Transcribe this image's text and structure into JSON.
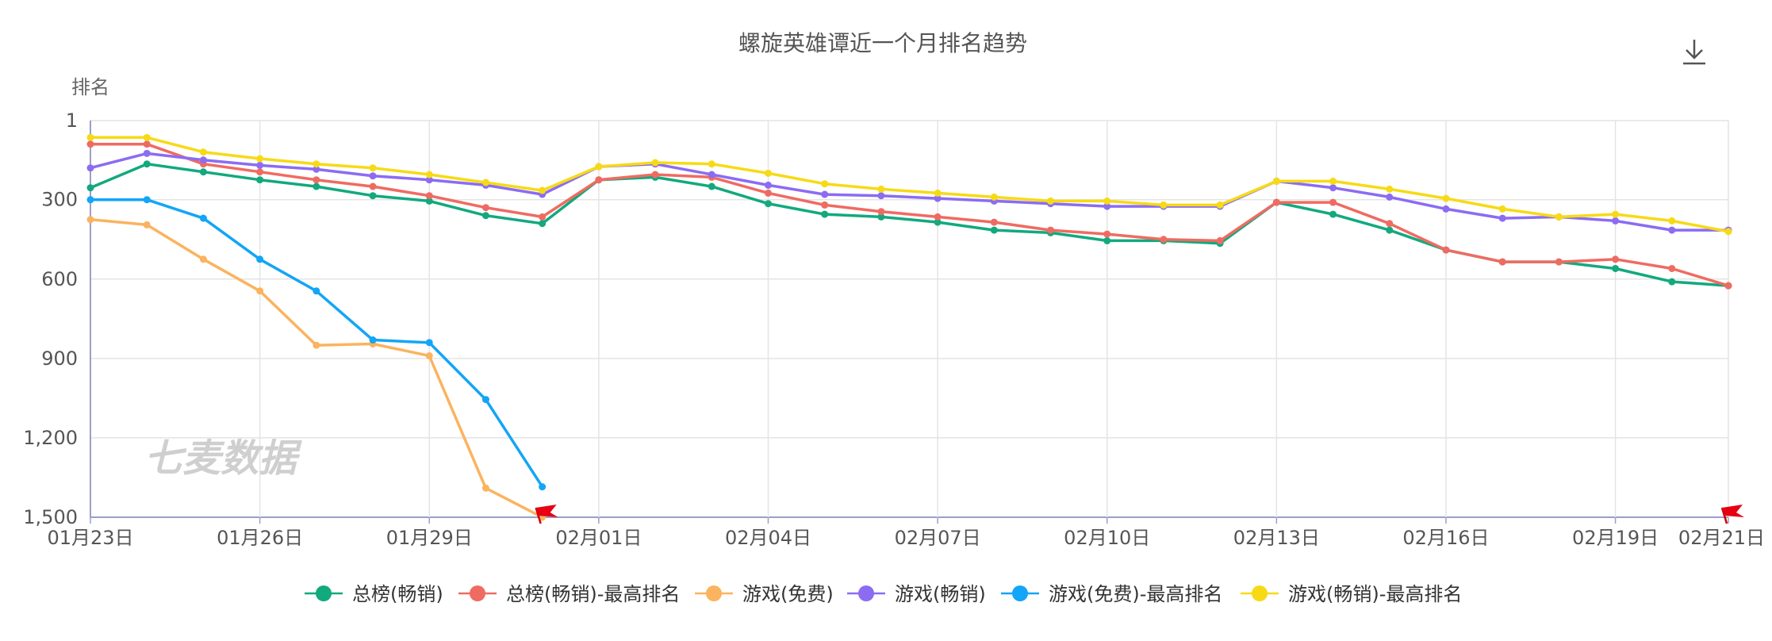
{
  "chart_data": {
    "type": "line",
    "title": "螺旋英雄谭近一个月排名趋势",
    "ylabel": "排名",
    "xlabel": "",
    "y_inverted": true,
    "ylim": [
      1,
      1500
    ],
    "y_ticks": [
      {
        "value": 1,
        "label": "1"
      },
      {
        "value": 300,
        "label": "300"
      },
      {
        "value": 600,
        "label": "600"
      },
      {
        "value": 900,
        "label": "900"
      },
      {
        "value": 1200,
        "label": "1,200"
      },
      {
        "value": 1500,
        "label": "1,500"
      }
    ],
    "x": [
      "01月23日",
      "01月24日",
      "01月25日",
      "01月26日",
      "01月27日",
      "01月28日",
      "01月29日",
      "01月30日",
      "01月31日",
      "02月01日",
      "02月02日",
      "02月03日",
      "02月04日",
      "02月05日",
      "02月06日",
      "02月07日",
      "02月08日",
      "02月09日",
      "02月10日",
      "02月11日",
      "02月12日",
      "02月13日",
      "02月14日",
      "02月15日",
      "02月16日",
      "02月17日",
      "02月18日",
      "02月19日",
      "02月20日",
      "02月21日"
    ],
    "x_ticks": [
      "01月23日",
      "01月26日",
      "01月29日",
      "02月01日",
      "02月04日",
      "02月07日",
      "02月10日",
      "02月13日",
      "02月16日",
      "02月19日",
      "02月21日"
    ],
    "grid": true,
    "legend_position": "bottom",
    "series": [
      {
        "name": "总榜(畅销)",
        "color": "#12a97e",
        "values": [
          255,
          165,
          195,
          225,
          250,
          285,
          305,
          360,
          390,
          225,
          215,
          250,
          315,
          355,
          365,
          385,
          415,
          425,
          455,
          455,
          465,
          310,
          355,
          415,
          490,
          535,
          535,
          560,
          610,
          625
        ]
      },
      {
        "name": "总榜(畅销)-最高排名",
        "color": "#ef6b62",
        "values": [
          90,
          90,
          165,
          195,
          225,
          250,
          285,
          330,
          365,
          225,
          205,
          215,
          275,
          320,
          345,
          365,
          385,
          415,
          430,
          450,
          455,
          310,
          310,
          390,
          490,
          535,
          535,
          525,
          560,
          625
        ]
      },
      {
        "name": "游戏(免费)",
        "color": "#fbb35f",
        "values": [
          375,
          395,
          525,
          645,
          850,
          845,
          890,
          1390,
          1500,
          null,
          null,
          null,
          null,
          null,
          null,
          null,
          null,
          null,
          null,
          null,
          null,
          null,
          null,
          null,
          null,
          null,
          null,
          null,
          null,
          null
        ]
      },
      {
        "name": "游戏(畅销)",
        "color": "#8b6cf2",
        "values": [
          180,
          125,
          150,
          170,
          185,
          210,
          225,
          245,
          280,
          175,
          165,
          205,
          245,
          280,
          285,
          295,
          305,
          315,
          325,
          325,
          325,
          230,
          255,
          290,
          335,
          370,
          365,
          380,
          415,
          415
        ]
      },
      {
        "name": "游戏(免费)-最高排名",
        "color": "#13a5f7",
        "values": [
          300,
          300,
          370,
          525,
          645,
          830,
          840,
          1055,
          1385,
          null,
          null,
          null,
          null,
          null,
          null,
          null,
          null,
          null,
          null,
          null,
          null,
          null,
          null,
          null,
          null,
          null,
          null,
          null,
          null,
          null
        ]
      },
      {
        "name": "游戏(畅销)-最高排名",
        "color": "#f7da16",
        "values": [
          65,
          65,
          120,
          145,
          165,
          180,
          205,
          235,
          265,
          175,
          160,
          165,
          200,
          240,
          260,
          275,
          290,
          305,
          305,
          320,
          320,
          230,
          230,
          260,
          295,
          335,
          365,
          355,
          380,
          420
        ]
      }
    ],
    "watermark": "七麦数据",
    "download_icon": "download-icon",
    "flag_icon": "red-flag-icon"
  }
}
